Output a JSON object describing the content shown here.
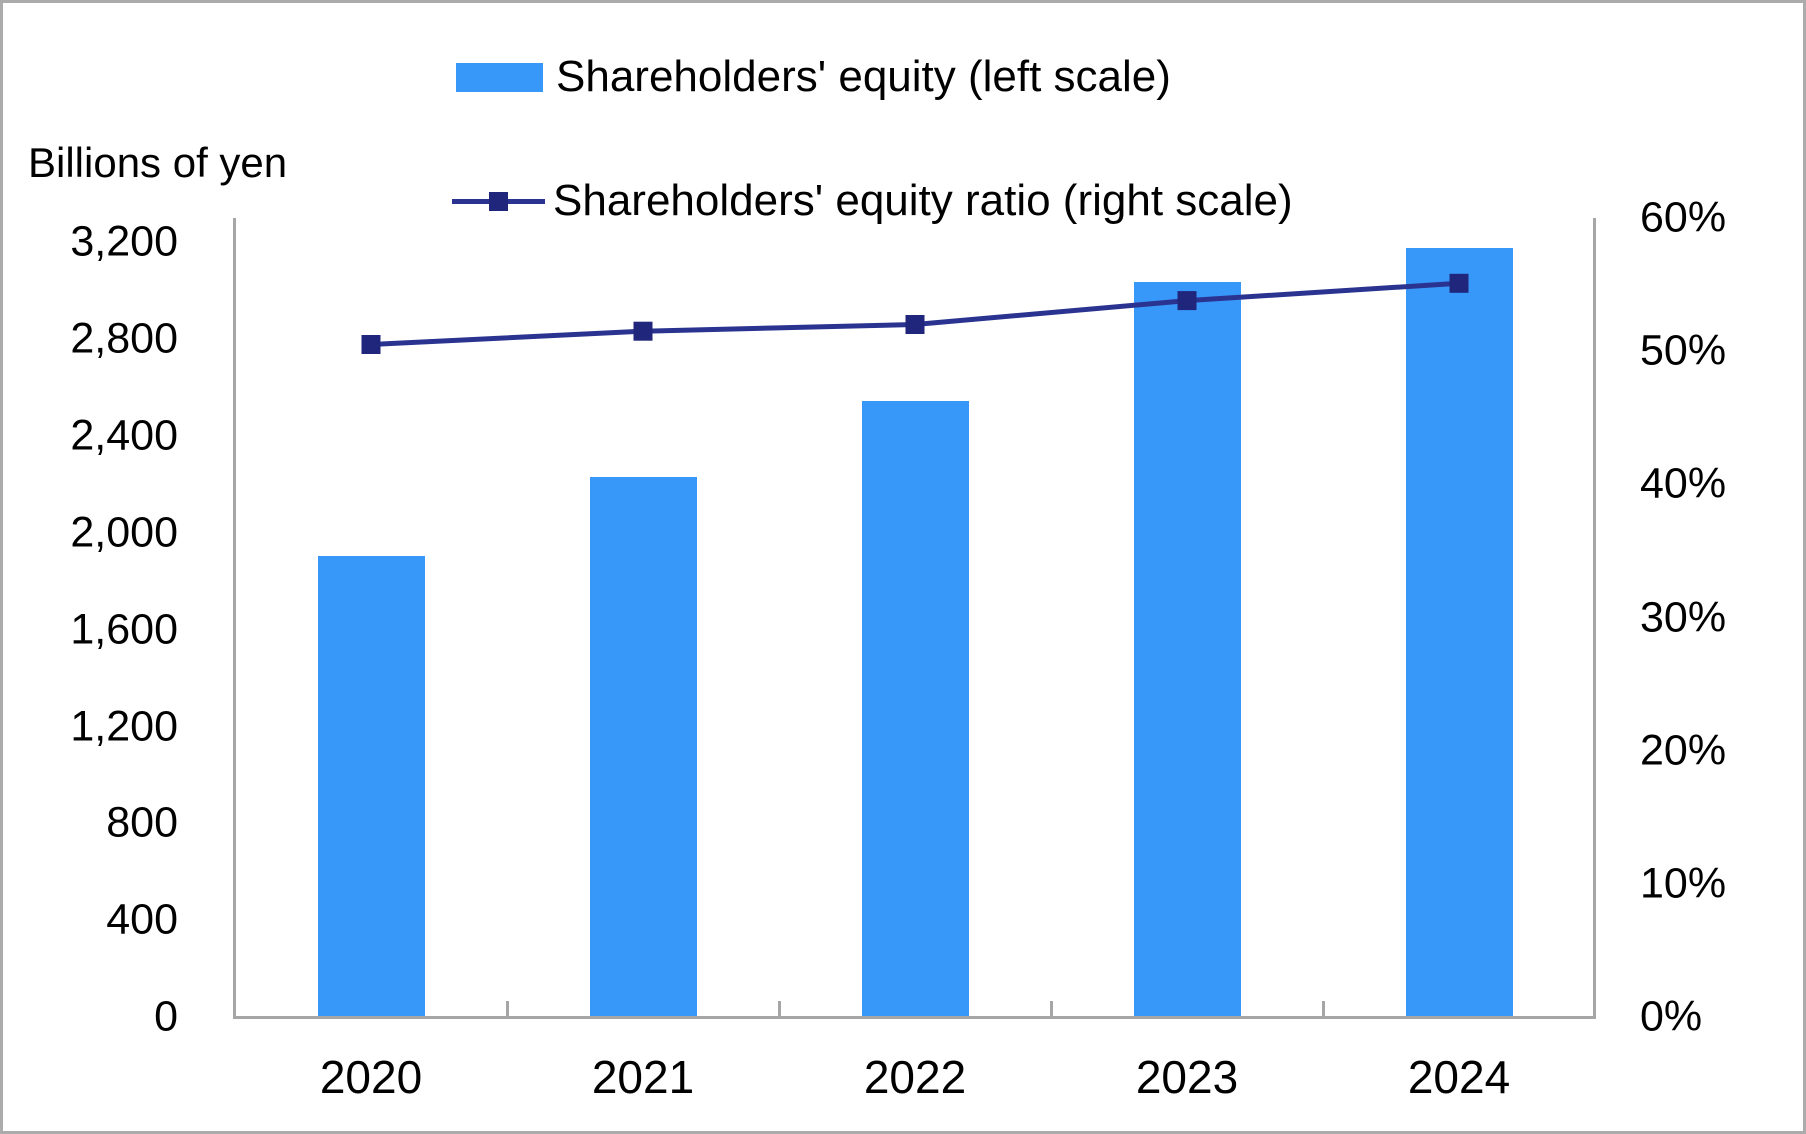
{
  "chart_data": {
    "type": "bar+line",
    "unit_label": "Billions of yen",
    "categories": [
      "2020",
      "2021",
      "2022",
      "2023",
      "2024"
    ],
    "series": [
      {
        "name": "Shareholders' equity (left scale)",
        "type": "bar",
        "axis": "left",
        "values": [
          1905,
          2230,
          2545,
          3035,
          3175
        ]
      },
      {
        "name": "Shareholders' equity ratio (right scale)",
        "type": "line",
        "axis": "right",
        "values": [
          50.5,
          51.5,
          52.0,
          53.8,
          55.1
        ]
      }
    ],
    "left_axis": {
      "min": 0,
      "max": 3300,
      "tick_interval": 400,
      "tick_values": [
        0,
        400,
        800,
        1200,
        1600,
        2000,
        2400,
        2800,
        3200
      ],
      "tick_labels": [
        "0",
        "400",
        "800",
        "1,200",
        "1,600",
        "2,000",
        "2,400",
        "2,800",
        "3,200"
      ]
    },
    "right_axis": {
      "min": 0,
      "max": 60,
      "tick_interval": 10,
      "tick_values": [
        0,
        10,
        20,
        30,
        40,
        50,
        60
      ],
      "tick_labels": [
        "0%",
        "10%",
        "20%",
        "30%",
        "40%",
        "50%",
        "60%"
      ]
    },
    "legend_position": "top-center",
    "grid": false
  },
  "colors": {
    "bar_fill": "#3898FA",
    "line_stroke": "#2A3490",
    "marker_fill": "#20267B",
    "axis_line": "#A6A6A6",
    "text": "#000000",
    "background": "#FFFFFF",
    "border": "#ABABAB"
  }
}
